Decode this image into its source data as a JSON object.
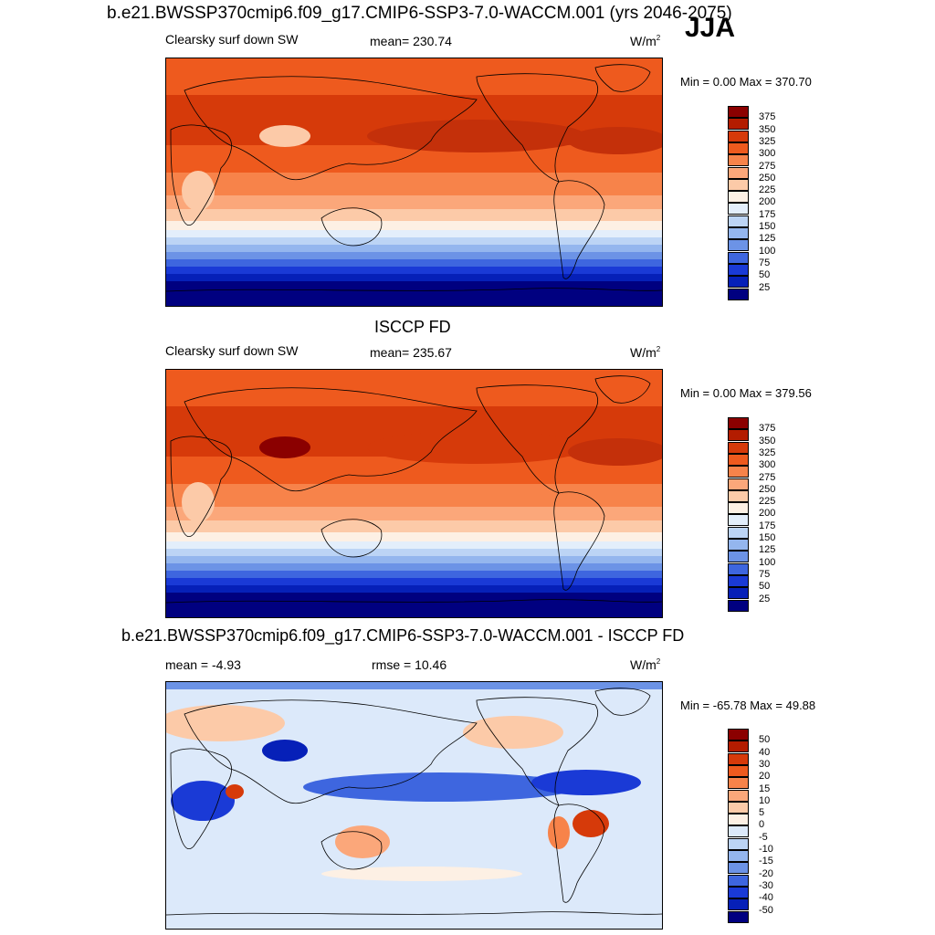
{
  "title": "b.e21.BWSSP370cmip6.f09_g17.CMIP6-SSP3-7.0-WACCM.001 (yrs 2046-2075)",
  "season": "JJA",
  "panels": [
    {
      "heading": "",
      "left": "Clearsky surf down SW",
      "center": "mean= 230.74",
      "units": "W/m",
      "units_sup": "2",
      "minmax": "Min =   0.00 Max = 370.70",
      "kind": "abs"
    },
    {
      "heading": "ISCCP FD",
      "left": "Clearsky surf down SW",
      "center": "mean= 235.67",
      "units": "W/m",
      "units_sup": "2",
      "minmax": "Min =   0.00 Max = 379.56",
      "kind": "abs"
    },
    {
      "heading": "b.e21.BWSSP370cmip6.f09_g17.CMIP6-SSP3-7.0-WACCM.001 - ISCCP FD",
      "left": "mean =  -4.93",
      "center": "rmse =  10.46",
      "units": "W/m",
      "units_sup": "2",
      "minmax": "Min = -65.78 Max =  49.88",
      "kind": "diff"
    }
  ],
  "chart_data": [
    {
      "type": "heatmap",
      "title": "Clearsky surf down SW",
      "colorbar_levels": [
        "375",
        "350",
        "325",
        "300",
        "275",
        "250",
        "225",
        "200",
        "175",
        "150",
        "125",
        "100",
        "75",
        "50",
        "25"
      ],
      "colorbar_colors": [
        "#8b0000",
        "#b31c00",
        "#d63a0a",
        "#ee5a1e",
        "#f7834a",
        "#fba77a",
        "#fccaa8",
        "#fdf0e4",
        "#e3eefb",
        "#bcd4f5",
        "#94b6ee",
        "#6c93e6",
        "#3e66df",
        "#1a3ad6",
        "#0620b8",
        "#000080"
      ],
      "mean": 230.74,
      "min": 0.0,
      "max": 370.7
    },
    {
      "type": "heatmap",
      "title": "ISCCP FD",
      "colorbar_levels": [
        "375",
        "350",
        "325",
        "300",
        "275",
        "250",
        "225",
        "200",
        "175",
        "150",
        "125",
        "100",
        "75",
        "50",
        "25"
      ],
      "colorbar_colors": [
        "#8b0000",
        "#b31c00",
        "#d63a0a",
        "#ee5a1e",
        "#f7834a",
        "#fba77a",
        "#fccaa8",
        "#fdf0e4",
        "#e3eefb",
        "#bcd4f5",
        "#94b6ee",
        "#6c93e6",
        "#3e66df",
        "#1a3ad6",
        "#0620b8",
        "#000080"
      ],
      "mean": 235.67,
      "min": 0.0,
      "max": 379.56
    },
    {
      "type": "heatmap",
      "title": "b.e21.BWSSP370cmip6.f09_g17.CMIP6-SSP3-7.0-WACCM.001 - ISCCP FD",
      "colorbar_levels": [
        "50",
        "40",
        "30",
        "20",
        "15",
        "10",
        "5",
        "0",
        "-5",
        "-10",
        "-15",
        "-20",
        "-30",
        "-40",
        "-50"
      ],
      "colorbar_colors": [
        "#8b0000",
        "#b31c00",
        "#d63a0a",
        "#ee5a1e",
        "#f7834a",
        "#fba77a",
        "#fccaa8",
        "#fdf0e4",
        "#dce9fa",
        "#bcd4f5",
        "#94b6ee",
        "#6c93e6",
        "#3e66df",
        "#1a3ad6",
        "#0620b8",
        "#000080"
      ],
      "mean": -4.93,
      "rmse": 10.46,
      "min": -65.78,
      "max": 49.88
    }
  ]
}
